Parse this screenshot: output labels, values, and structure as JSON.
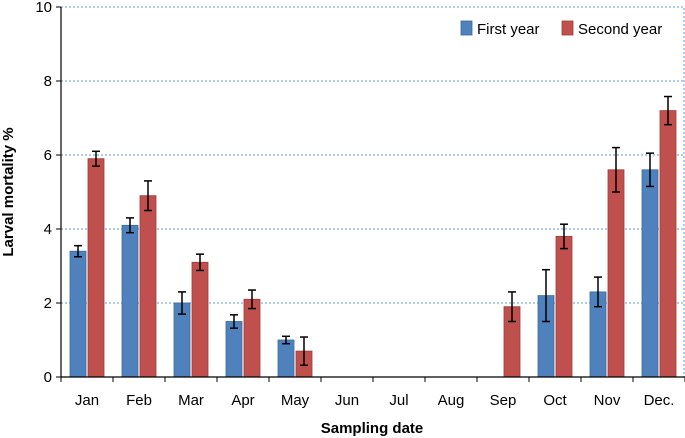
{
  "chart_data": {
    "type": "bar",
    "title": "",
    "xlabel": "Sampling date",
    "ylabel": "Larval mortality %",
    "ylim": [
      0,
      10
    ],
    "yticks": [
      0,
      2,
      4,
      6,
      8,
      10
    ],
    "grid": true,
    "legend_position": "top-right",
    "categories": [
      "Jan",
      "Feb",
      "Mar",
      "Apr",
      "May",
      "Jun",
      "Jul",
      "Aug",
      "Sep",
      "Oct",
      "Nov",
      "Dec."
    ],
    "series": [
      {
        "name": "First year",
        "color": "#4F81BD",
        "values": [
          3.4,
          4.1,
          2.0,
          1.5,
          1.0,
          0,
          0,
          0,
          0,
          2.2,
          2.3,
          5.6
        ],
        "errors": [
          0.15,
          0.2,
          0.3,
          0.18,
          0.1,
          0,
          0,
          0,
          0,
          0.7,
          0.4,
          0.45
        ]
      },
      {
        "name": "Second year",
        "color": "#C0504D",
        "values": [
          5.9,
          4.9,
          3.1,
          2.1,
          0.7,
          0,
          0,
          0,
          1.9,
          3.8,
          5.6,
          7.2
        ],
        "errors": [
          0.2,
          0.4,
          0.22,
          0.25,
          0.38,
          0,
          0,
          0,
          0.4,
          0.33,
          0.6,
          0.38
        ]
      }
    ]
  }
}
